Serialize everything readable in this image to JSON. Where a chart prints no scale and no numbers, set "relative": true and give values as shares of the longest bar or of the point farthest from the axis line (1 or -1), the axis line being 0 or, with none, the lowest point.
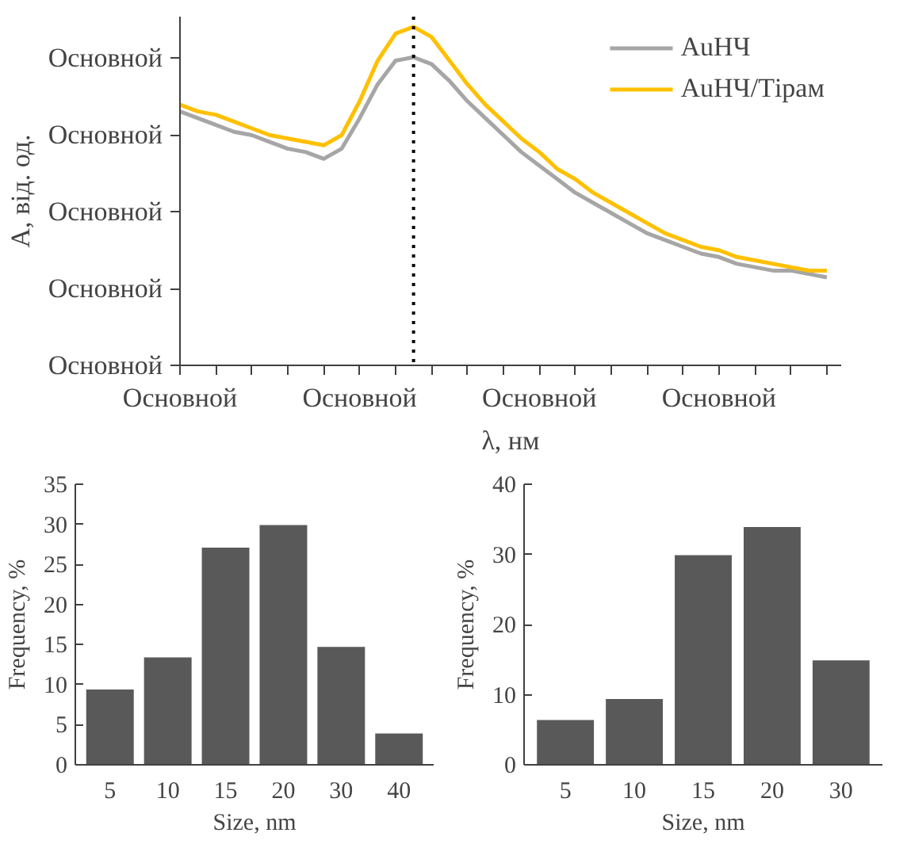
{
  "chart_data": [
    {
      "type": "line",
      "relative": true,
      "xlabel": "λ, нм",
      "ylabel": "А, від. од.",
      "legend": "top right",
      "line_style": "solid",
      "categories": [
        "Основной",
        null,
        null,
        null,
        null,
        null,
        null,
        null,
        null,
        null,
        "Основной",
        null,
        null,
        null,
        null,
        null,
        null,
        null,
        null,
        null,
        "Основной",
        null,
        null,
        null,
        null,
        null,
        null,
        null,
        null,
        null,
        "Основной",
        null,
        null,
        null,
        null,
        null,
        null
      ],
      "annotations": [
        "Основной",
        "Основной",
        "Основной",
        "Основной",
        "Основной"
      ],
      "series": [
        {
          "name": "AuНЧ",
          "color": "#a6a6a6",
          "values": [
            0.75,
            0.73,
            0.71,
            0.69,
            0.68,
            0.66,
            0.64,
            0.63,
            0.61,
            0.64,
            0.73,
            0.83,
            0.9,
            0.91,
            0.89,
            0.84,
            0.78,
            0.73,
            0.68,
            0.63,
            0.59,
            0.55,
            0.51,
            0.48,
            0.45,
            0.42,
            0.39,
            0.37,
            0.35,
            0.33,
            0.32,
            0.3,
            0.29,
            0.28,
            0.28,
            0.27,
            0.26
          ]
        },
        {
          "name": "AuНЧ/Тірам",
          "color": "#ffc000",
          "values": [
            0.77,
            0.75,
            0.74,
            0.72,
            0.7,
            0.68,
            0.67,
            0.66,
            0.65,
            0.68,
            0.78,
            0.9,
            0.98,
            1,
            0.97,
            0.9,
            0.83,
            0.77,
            0.72,
            0.67,
            0.63,
            0.58,
            0.55,
            0.51,
            0.48,
            0.45,
            0.42,
            0.39,
            0.37,
            0.35,
            0.34,
            0.32,
            0.31,
            0.3,
            0.29,
            0.28,
            0.28
          ]
        }
      ]
    },
    {
      "type": "bar",
      "xlabel": "Size, nm",
      "ylabel": "Frequency, %",
      "color": "#595959",
      "categories": [
        "5",
        "10",
        "15",
        "20",
        "30",
        "40"
      ],
      "values": [
        9.5,
        13.5,
        27.2,
        30,
        14.8,
        4
      ],
      "ylim": [
        0,
        35
      ],
      "yticks": [
        0,
        5,
        10,
        15,
        20,
        25,
        30,
        35
      ]
    },
    {
      "type": "bar",
      "xlabel": "Size, nm",
      "ylabel": "Frequency, %",
      "color": "#595959",
      "categories": [
        "5",
        "10",
        "15",
        "20",
        "30"
      ],
      "values": [
        6.5,
        9.5,
        30,
        34,
        15
      ],
      "ylim": [
        0,
        40
      ],
      "yticks": [
        0,
        10,
        20,
        30,
        40
      ]
    }
  ]
}
